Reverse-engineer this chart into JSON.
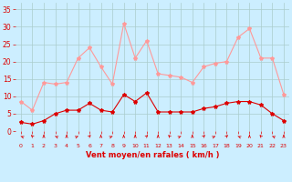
{
  "hours": [
    0,
    1,
    2,
    3,
    4,
    5,
    6,
    7,
    8,
    9,
    10,
    11,
    12,
    13,
    14,
    15,
    16,
    17,
    18,
    19,
    20,
    21,
    22,
    23
  ],
  "wind_avg": [
    2.5,
    2,
    3,
    5,
    6,
    6,
    8,
    6,
    5.5,
    10.5,
    8.5,
    11,
    5.5,
    5.5,
    5.5,
    5.5,
    6.5,
    7,
    8,
    8.5,
    8.5,
    7.5,
    5,
    3
  ],
  "wind_gust": [
    8.5,
    6,
    14,
    13.5,
    14,
    21,
    24,
    18.5,
    13.5,
    31,
    21,
    26,
    16.5,
    16,
    15.5,
    14,
    18.5,
    19.5,
    20,
    27,
    29.5,
    21,
    21,
    10.5
  ],
  "wind_dir_angles": [
    225,
    202,
    180,
    225,
    180,
    135,
    157,
    180,
    135,
    180,
    180,
    157,
    180,
    202,
    135,
    180,
    157,
    135,
    157,
    225,
    180,
    202,
    225,
    180
  ],
  "avg_color": "#dd0000",
  "gust_color": "#ff9999",
  "bg_color": "#cceeff",
  "grid_color": "#aacccc",
  "xlabel": "Vent moyen/en rafales ( km/h )",
  "xlabel_color": "#dd0000",
  "ylabel_color": "#dd0000",
  "tick_color": "#dd0000",
  "yticks": [
    0,
    5,
    10,
    15,
    20,
    25,
    30,
    35
  ],
  "ylim": [
    0,
    37
  ],
  "xlim": [
    -0.5,
    23.5
  ],
  "markersize": 3,
  "linewidth": 0.8
}
